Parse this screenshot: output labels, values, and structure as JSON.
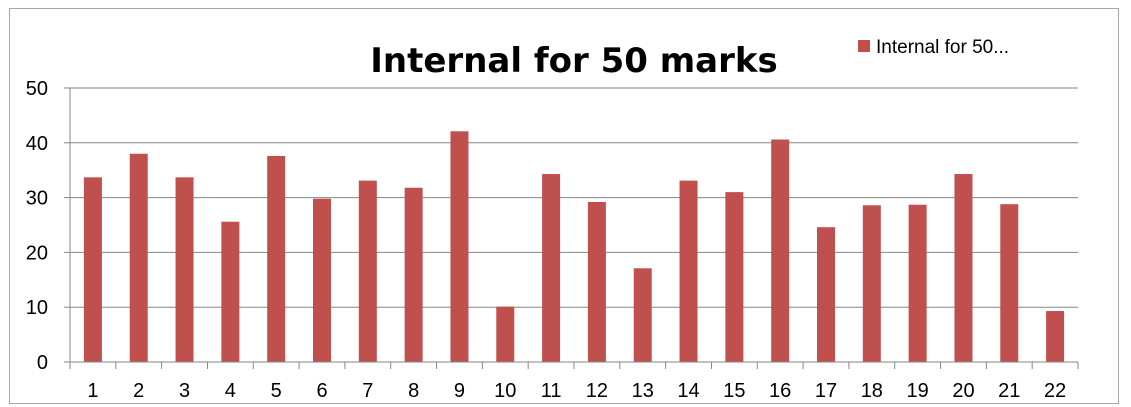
{
  "chart_data": {
    "type": "bar",
    "title": "Internal for 50 marks",
    "xlabel": "",
    "ylabel": "",
    "categories": [
      "1",
      "2",
      "3",
      "4",
      "5",
      "6",
      "7",
      "8",
      "9",
      "10",
      "11",
      "12",
      "13",
      "14",
      "15",
      "16",
      "17",
      "18",
      "19",
      "20",
      "21",
      "22"
    ],
    "series": [
      {
        "name": "Internal for 50...",
        "values": [
          33.7,
          38.0,
          33.7,
          25.6,
          37.6,
          29.8,
          33.1,
          31.8,
          42.1,
          10.1,
          34.3,
          29.2,
          17.1,
          33.1,
          31.0,
          40.6,
          24.6,
          28.6,
          28.7,
          34.3,
          28.8,
          9.3
        ]
      }
    ],
    "ylim": [
      0,
      50
    ],
    "yticks": [
      "0",
      "10",
      "20",
      "30",
      "40",
      "50"
    ],
    "grid": true,
    "legend_position": "top-right",
    "colors": {
      "bar": "#c0504d",
      "grid": "#868686",
      "axis": "#868686"
    }
  }
}
